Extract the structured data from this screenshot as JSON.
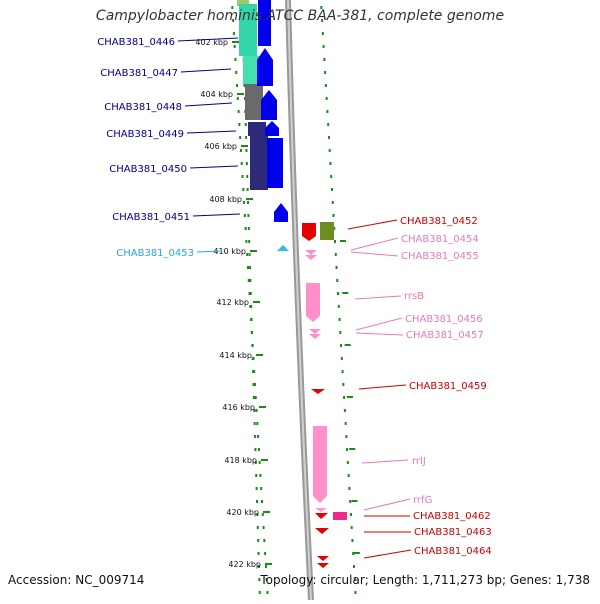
{
  "title": "Campylobacter hominis ATCC BAA-381, complete genome",
  "accession": "Accession: NC_009714",
  "topology": "Topology: circular; Length: 1,711,273 bp; Genes: 1,738",
  "colors": {
    "teal": "#33d6a8",
    "blue": "#0000ee",
    "navy": "#2e2a7a",
    "gray": "#6a6a6a",
    "cyan": "#33bbdd",
    "red": "#e60000",
    "olive": "#6b8e23",
    "pink": "#ff8fc8",
    "lightpink": "#ff9acb",
    "magenta": "#ee2a8a",
    "tick": "#1a8c1a",
    "backbone": "#999999",
    "labelBlue": "#00008b",
    "labelCyan": "#22aadd",
    "labelRed": "#cc0000",
    "labelPink": "#e77ab6"
  },
  "scale": {
    "labels": [
      "402 kbp",
      "404 kbp",
      "406 kbp",
      "408 kbp",
      "410 kbp",
      "412 kbp",
      "414 kbp",
      "416 kbp",
      "418 kbp",
      "420 kbp",
      "422 kbp"
    ]
  },
  "genes_left": [
    {
      "label": "CHAB381_0446",
      "color": "labelBlue"
    },
    {
      "label": "CHAB381_0447",
      "color": "labelBlue"
    },
    {
      "label": "CHAB381_0448",
      "color": "labelBlue"
    },
    {
      "label": "CHAB381_0449",
      "color": "labelBlue"
    },
    {
      "label": "CHAB381_0450",
      "color": "labelBlue"
    },
    {
      "label": "CHAB381_0451",
      "color": "labelBlue"
    },
    {
      "label": "CHAB381_0453",
      "color": "labelCyan"
    }
  ],
  "genes_right": [
    {
      "label": "CHAB381_0452",
      "color": "labelRed"
    },
    {
      "label": "CHAB381_0454",
      "color": "labelPink"
    },
    {
      "label": "CHAB381_0455",
      "color": "labelPink"
    },
    {
      "label": "rrsB",
      "color": "labelPink"
    },
    {
      "label": "CHAB381_0456",
      "color": "labelPink"
    },
    {
      "label": "CHAB381_0457",
      "color": "labelPink"
    },
    {
      "label": "CHAB381_0459",
      "color": "labelRed"
    },
    {
      "label": "rrlJ",
      "color": "labelPink"
    },
    {
      "label": "rrfG",
      "color": "labelPink"
    },
    {
      "label": "CHAB381_0462",
      "color": "labelRed"
    },
    {
      "label": "CHAB381_0463",
      "color": "labelRed"
    },
    {
      "label": "CHAB381_0464",
      "color": "labelRed"
    }
  ]
}
